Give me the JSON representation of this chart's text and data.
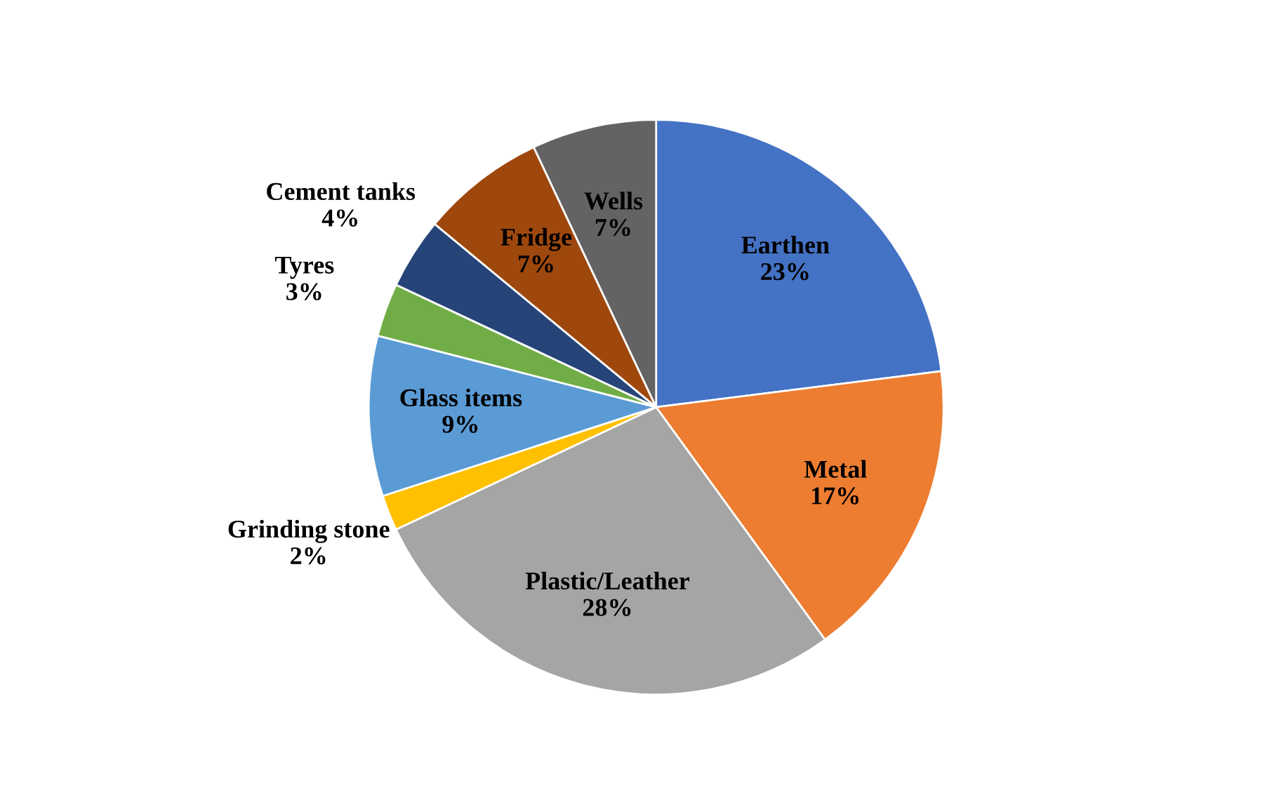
{
  "chart_data": {
    "type": "pie",
    "categories": [
      "Earthen",
      "Metal",
      "Plastic/Leather",
      "Grinding stone",
      "Glass items",
      "Tyres",
      "Cement tanks",
      "Fridge",
      "Wells"
    ],
    "values": [
      23,
      17,
      28,
      2,
      9,
      3,
      4,
      7,
      7
    ],
    "colors": [
      "#4472c4",
      "#ed7d31",
      "#a5a5a5",
      "#ffc000",
      "#5b9bd5",
      "#70ad47",
      "#264478",
      "#9e480e",
      "#636363"
    ],
    "value_labels": [
      "23%",
      "17%",
      "28%",
      "2%",
      "9%",
      "3%",
      "4%",
      "7%",
      "7%"
    ],
    "legend": false
  }
}
